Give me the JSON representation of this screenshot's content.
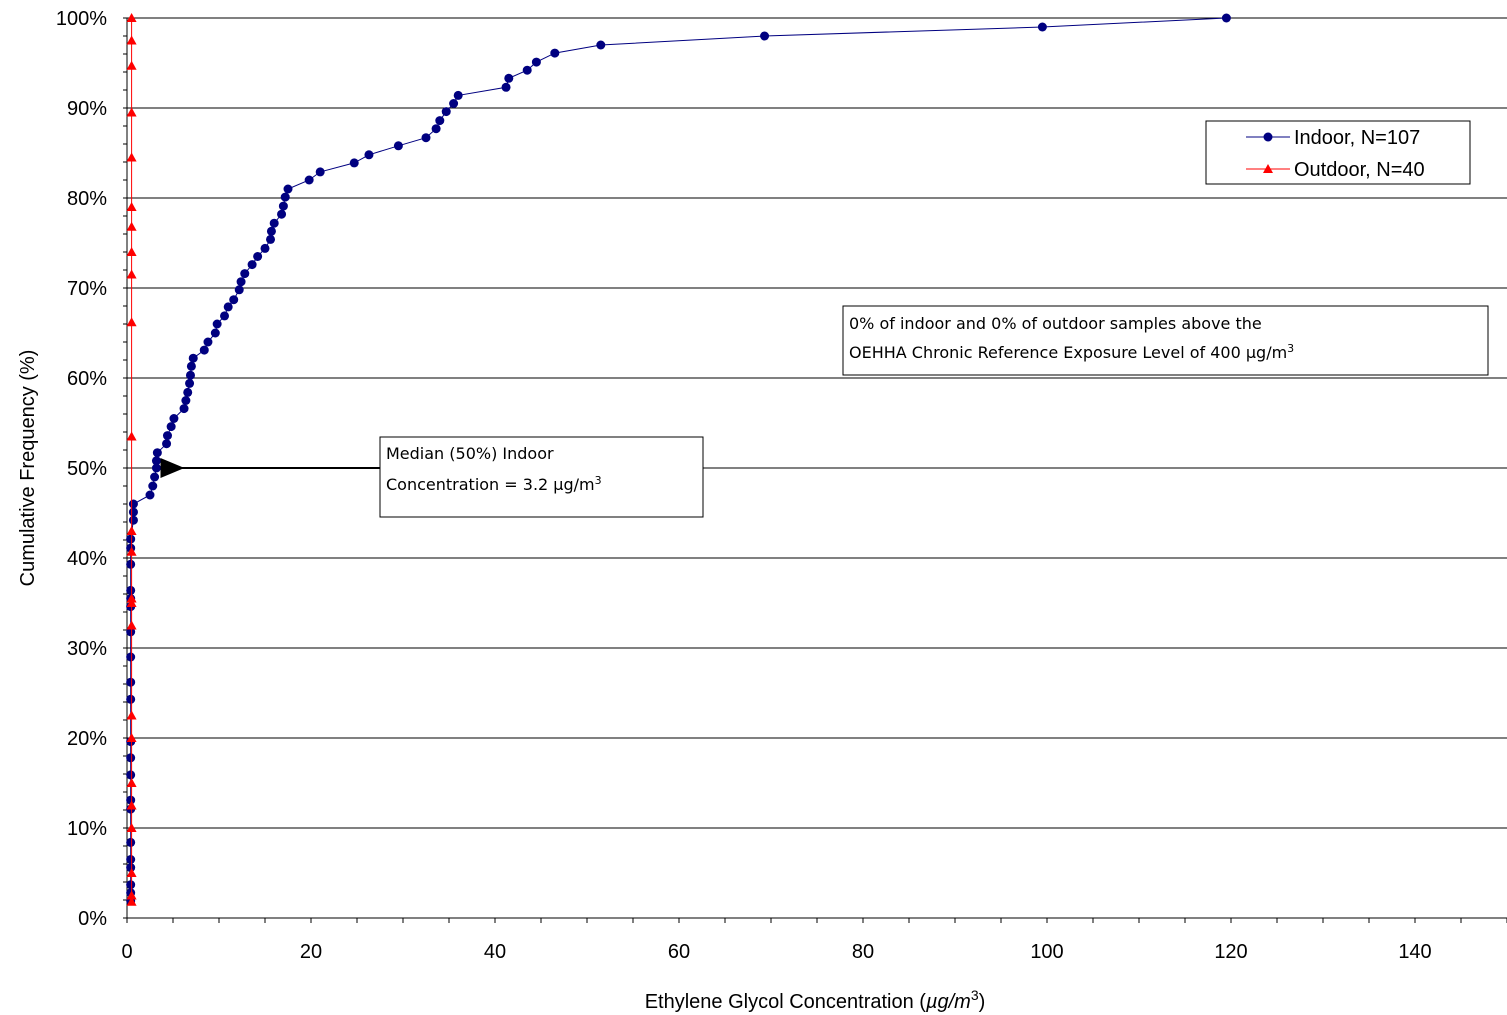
{
  "chart_data": {
    "type": "line",
    "xlabel": "Ethylene Glycol Concentration (",
    "xlabel_unit": "µg/m",
    "xlabel_sup": "3",
    "xlabel_end": ")",
    "ylabel": "Cumulative Frequency (%)",
    "xlim": [
      0,
      150
    ],
    "ylim": [
      0,
      100
    ],
    "x_ticks": [
      0,
      20,
      40,
      60,
      80,
      100,
      120,
      140
    ],
    "x_tick_labels": [
      "0",
      "20",
      "40",
      "60",
      "80",
      "100",
      "120",
      "140"
    ],
    "y_ticks": [
      0,
      10,
      20,
      30,
      40,
      50,
      60,
      70,
      80,
      90,
      100
    ],
    "y_tick_labels": [
      "0%",
      "10%",
      "20%",
      "30%",
      "40%",
      "50%",
      "60%",
      "70%",
      "80%",
      "90%",
      "100%"
    ],
    "grid": "horizontal",
    "legend_position": "top-right",
    "series": [
      {
        "name": "Indoor, N=107",
        "color": "#000080",
        "marker": "circle",
        "points": [
          [
            0.4,
            1.9
          ],
          [
            0.4,
            2.8
          ],
          [
            0.4,
            3.7
          ],
          [
            0.4,
            5.6
          ],
          [
            0.4,
            6.5
          ],
          [
            0.4,
            8.4
          ],
          [
            0.4,
            12.1
          ],
          [
            0.4,
            13.1
          ],
          [
            0.4,
            15.9
          ],
          [
            0.4,
            17.8
          ],
          [
            0.4,
            19.6
          ],
          [
            0.4,
            24.3
          ],
          [
            0.4,
            26.2
          ],
          [
            0.4,
            29.0
          ],
          [
            0.4,
            31.8
          ],
          [
            0.4,
            34.6
          ],
          [
            0.4,
            35.5
          ],
          [
            0.4,
            36.4
          ],
          [
            0.4,
            39.3
          ],
          [
            0.4,
            41.1
          ],
          [
            0.4,
            42.1
          ],
          [
            0.7,
            44.2
          ],
          [
            0.7,
            45.1
          ],
          [
            0.7,
            46.0
          ],
          [
            2.5,
            47.0
          ],
          [
            2.8,
            48.0
          ],
          [
            3.0,
            49.0
          ],
          [
            3.2,
            50.0
          ],
          [
            3.2,
            50.8
          ],
          [
            3.3,
            51.7
          ],
          [
            4.3,
            52.7
          ],
          [
            4.4,
            53.6
          ],
          [
            4.8,
            54.6
          ],
          [
            5.1,
            55.5
          ],
          [
            6.2,
            56.6
          ],
          [
            6.4,
            57.5
          ],
          [
            6.6,
            58.4
          ],
          [
            6.8,
            59.4
          ],
          [
            6.9,
            60.3
          ],
          [
            7.0,
            61.3
          ],
          [
            7.2,
            62.2
          ],
          [
            8.4,
            63.1
          ],
          [
            8.8,
            64.0
          ],
          [
            9.6,
            65.0
          ],
          [
            9.8,
            66.0
          ],
          [
            10.6,
            66.9
          ],
          [
            11.0,
            67.9
          ],
          [
            11.6,
            68.7
          ],
          [
            12.2,
            69.8
          ],
          [
            12.4,
            70.7
          ],
          [
            12.8,
            71.6
          ],
          [
            13.6,
            72.6
          ],
          [
            14.2,
            73.5
          ],
          [
            15.0,
            74.4
          ],
          [
            15.6,
            75.4
          ],
          [
            15.7,
            76.3
          ],
          [
            16.0,
            77.2
          ],
          [
            16.8,
            78.2
          ],
          [
            17.0,
            79.1
          ],
          [
            17.2,
            80.1
          ],
          [
            17.5,
            81.0
          ],
          [
            19.8,
            82.0
          ],
          [
            21.0,
            82.9
          ],
          [
            24.7,
            83.9
          ],
          [
            26.3,
            84.8
          ],
          [
            29.5,
            85.8
          ],
          [
            32.5,
            86.7
          ],
          [
            33.6,
            87.7
          ],
          [
            34.0,
            88.6
          ],
          [
            34.7,
            89.6
          ],
          [
            35.5,
            90.5
          ],
          [
            36.0,
            91.4
          ],
          [
            41.2,
            92.3
          ],
          [
            41.5,
            93.3
          ],
          [
            43.5,
            94.2
          ],
          [
            44.5,
            95.1
          ],
          [
            46.5,
            96.1
          ],
          [
            51.5,
            97.0
          ],
          [
            69.3,
            98.0
          ],
          [
            99.5,
            99.0
          ],
          [
            119.5,
            100.0
          ]
        ]
      },
      {
        "name": "Outdoor, N=40",
        "color": "#FF0000",
        "marker": "triangle",
        "points": [
          [
            0.5,
            1.8
          ],
          [
            0.5,
            2.5
          ],
          [
            0.5,
            5.0
          ],
          [
            0.5,
            10.0
          ],
          [
            0.5,
            12.5
          ],
          [
            0.5,
            15.0
          ],
          [
            0.5,
            20.0
          ],
          [
            0.5,
            22.5
          ],
          [
            0.5,
            32.5
          ],
          [
            0.5,
            35.0
          ],
          [
            0.5,
            35.5
          ],
          [
            0.5,
            40.7
          ],
          [
            0.5,
            43.0
          ],
          [
            0.5,
            53.5
          ],
          [
            0.5,
            66.2
          ],
          [
            0.5,
            71.5
          ],
          [
            0.5,
            74.0
          ],
          [
            0.5,
            76.8
          ],
          [
            0.5,
            79.0
          ],
          [
            0.5,
            84.5
          ],
          [
            0.5,
            89.5
          ],
          [
            0.5,
            94.7
          ],
          [
            0.5,
            97.5
          ],
          [
            0.5,
            100.0
          ]
        ]
      }
    ],
    "annotations": {
      "median_line1": "Median (50%) Indoor",
      "median_line2": "Concentration = 3.2 µg/m",
      "median_sup": "3",
      "median_point": [
        4.5,
        50
      ],
      "rel_line1": "0% of indoor and 0% of outdoor samples above the",
      "rel_line2": "OEHHA Chronic Reference Exposure Level of 400 µg/m",
      "rel_sup": "3"
    }
  }
}
